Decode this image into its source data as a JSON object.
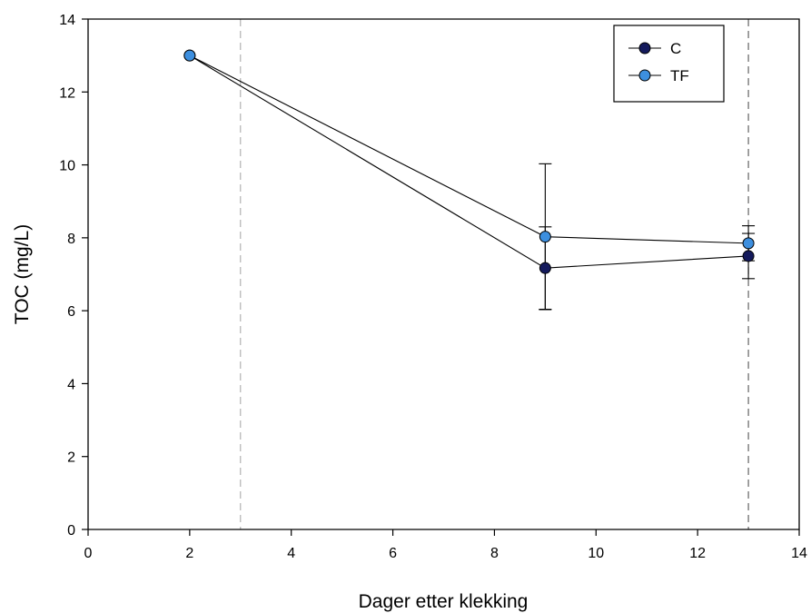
{
  "chart_data": {
    "type": "line",
    "title": "",
    "xlabel": "Dager etter klekking",
    "ylabel": "TOC (mg/L)",
    "xlim": [
      0,
      14
    ],
    "ylim": [
      0,
      14
    ],
    "xticks": [
      0,
      2,
      4,
      6,
      8,
      10,
      12,
      14
    ],
    "yticks": [
      0,
      2,
      4,
      6,
      8,
      10,
      12,
      14
    ],
    "grid": false,
    "legend_position": "top-right",
    "reference_lines_x": [
      3,
      13
    ],
    "series": [
      {
        "name": "C",
        "color": "#141a5c",
        "points": [
          {
            "x": 2,
            "y": 13.0,
            "err": 0
          },
          {
            "x": 9,
            "y": 7.17,
            "err": 1.13
          },
          {
            "x": 13,
            "y": 7.5,
            "err": 0.62
          }
        ]
      },
      {
        "name": "TF",
        "color": "#3d8fdf",
        "points": [
          {
            "x": 2,
            "y": 13.0,
            "err": 0
          },
          {
            "x": 9,
            "y": 8.03,
            "err": 2.0
          },
          {
            "x": 13,
            "y": 7.85,
            "err": 0.48
          }
        ]
      }
    ]
  }
}
